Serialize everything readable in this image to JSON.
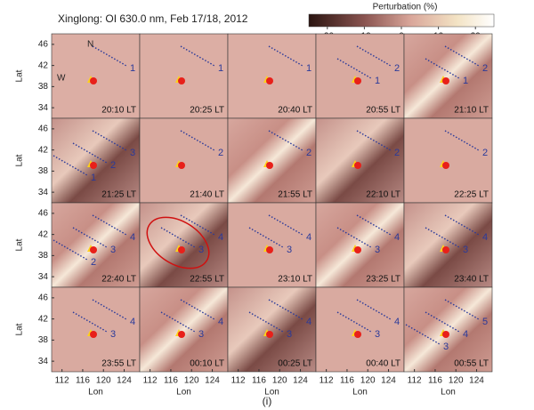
{
  "figure": {
    "title": "Xinglong: OI 630.0 nm, Feb 17/18, 2012",
    "colorbar": {
      "label": "Perturbation (%)",
      "lim": [
        -25,
        25
      ],
      "ticks": [
        -20,
        -10,
        0,
        10,
        20
      ]
    },
    "ylabel": "Lat",
    "xlabel": "Lon",
    "latlim": [
      32,
      48
    ],
    "lonlim": [
      110,
      127
    ],
    "yticks": [
      46,
      42,
      38,
      34
    ],
    "xticks": [
      112,
      116,
      120,
      124
    ],
    "north": "N",
    "west": "W",
    "caption": "(i)",
    "panels": [
      {
        "time": "20:10 LT",
        "waves": [
          "1"
        ]
      },
      {
        "time": "20:25 LT",
        "waves": [
          "1"
        ]
      },
      {
        "time": "20:40 LT",
        "waves": [
          "1"
        ]
      },
      {
        "time": "20:55 LT",
        "waves": [
          "2",
          "1"
        ]
      },
      {
        "time": "21:10 LT",
        "waves": [
          "2",
          "1"
        ]
      },
      {
        "time": "21:25 LT",
        "waves": [
          "3",
          "2",
          "1"
        ]
      },
      {
        "time": "21:40 LT",
        "waves": [
          "2"
        ]
      },
      {
        "time": "21:55 LT",
        "waves": [
          "2"
        ]
      },
      {
        "time": "22:10 LT",
        "waves": [
          "2"
        ]
      },
      {
        "time": "22:25 LT",
        "waves": [
          "2"
        ]
      },
      {
        "time": "22:40 LT",
        "waves": [
          "4",
          "3",
          "2"
        ]
      },
      {
        "time": "22:55 LT",
        "waves": [
          "4",
          "3"
        ]
      },
      {
        "time": "23:10 LT",
        "waves": [
          "4",
          "3"
        ]
      },
      {
        "time": "23:25 LT",
        "waves": [
          "4",
          "3"
        ]
      },
      {
        "time": "23:40 LT",
        "waves": [
          "4",
          "3"
        ]
      },
      {
        "time": "23:55 LT",
        "waves": [
          "4",
          "3"
        ]
      },
      {
        "time": "00:10 LT",
        "waves": [
          "4",
          "3"
        ]
      },
      {
        "time": "00:25 LT",
        "waves": [
          "4",
          "3"
        ]
      },
      {
        "time": "00:40 LT",
        "waves": [
          "4",
          "3"
        ]
      },
      {
        "time": "00:55 LT",
        "waves": [
          "5",
          "4",
          "3"
        ]
      }
    ]
  }
}
